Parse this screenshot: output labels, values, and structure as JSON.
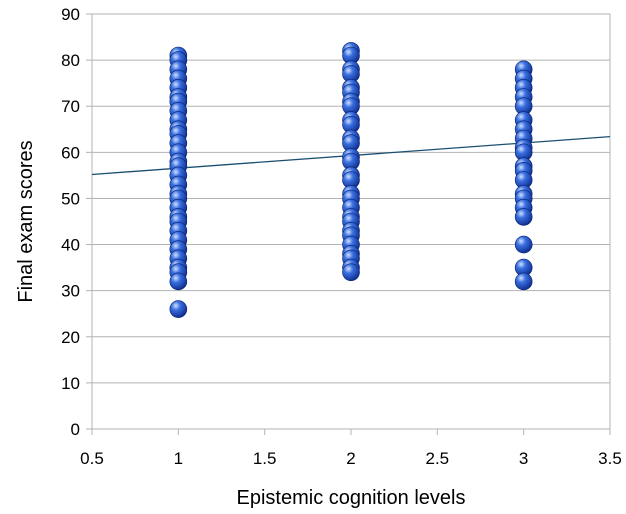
{
  "chart_data": {
    "type": "scatter",
    "xlabel": "Epistemic cognition levels",
    "ylabel": "Final exam scores",
    "xlim": [
      0.5,
      3.5
    ],
    "ylim": [
      0,
      90
    ],
    "xticks": [
      "0.5",
      "1",
      "1.5",
      "2",
      "2.5",
      "3",
      "3.5"
    ],
    "yticks": [
      "0",
      "10",
      "20",
      "30",
      "40",
      "50",
      "60",
      "70",
      "80",
      "90"
    ],
    "grid": "horizontal",
    "legend": "none",
    "colors": {
      "marker": "#1f4fc8",
      "trendline": "#1b4f72",
      "grid": "#b3b3b3"
    },
    "series": [
      {
        "x": [
          1,
          1,
          1,
          1,
          1,
          1,
          1,
          1,
          1,
          1,
          1,
          1,
          1,
          1,
          1,
          1,
          1,
          1,
          1,
          1,
          1,
          1,
          1,
          1,
          1,
          1,
          1,
          1,
          1,
          1,
          2,
          2,
          2,
          2,
          2,
          2,
          2,
          2,
          2,
          2,
          2,
          2,
          2,
          2,
          2,
          2,
          2,
          2,
          2,
          2,
          2,
          2,
          2,
          2,
          2,
          2,
          2,
          2,
          3,
          3,
          3,
          3,
          3,
          3,
          3,
          3,
          3,
          3,
          3,
          3,
          3,
          3,
          3,
          3,
          3,
          3,
          3,
          3
        ],
        "y": [
          81,
          80,
          78,
          76,
          74,
          72,
          71,
          69,
          67,
          65,
          64,
          62,
          60,
          58,
          57,
          55,
          53,
          51,
          50,
          48,
          46,
          45,
          43,
          41,
          39,
          37,
          35,
          34,
          32,
          26,
          82,
          81,
          78,
          77,
          74,
          73,
          71,
          70,
          67,
          66,
          63,
          62,
          59,
          58,
          55,
          54,
          51,
          50,
          48,
          46,
          45,
          43,
          42,
          40,
          38,
          37,
          35,
          34,
          78,
          76,
          74,
          72,
          70,
          67,
          65,
          63,
          61,
          60,
          57,
          56,
          54,
          51,
          50,
          48,
          46,
          40,
          35,
          32
        ]
      }
    ],
    "trendline": {
      "x": [
        0.5,
        3.5
      ],
      "y": [
        55.2,
        63.4
      ]
    }
  }
}
